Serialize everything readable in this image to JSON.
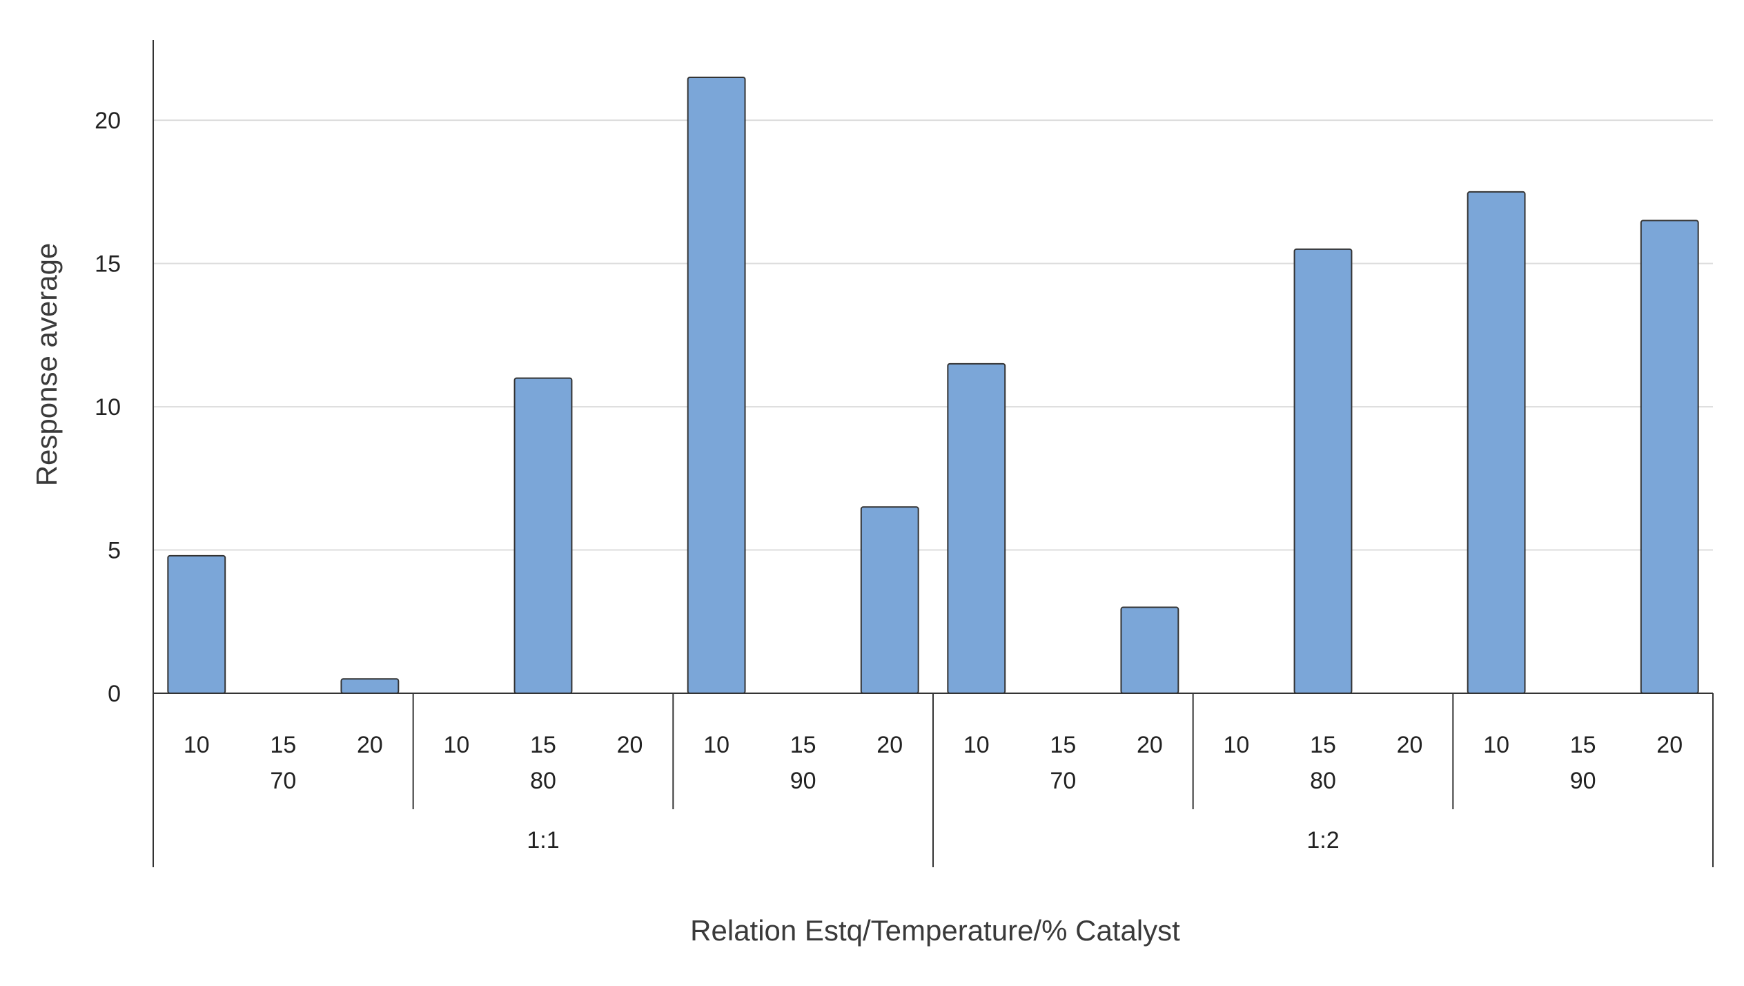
{
  "chart_data": {
    "type": "bar",
    "title": "",
    "xlabel": "Relation Estq/Temperature/% Catalyst",
    "ylabel": "Response average",
    "ylim": [
      0,
      22.8
    ],
    "yticks": [
      0,
      5,
      10,
      15,
      20
    ],
    "grid": true,
    "legend": "none",
    "x_levels": {
      "catalyst": [
        "10",
        "15",
        "20"
      ],
      "temperature": [
        "70",
        "80",
        "90"
      ],
      "relation": [
        "1:1",
        "1:2"
      ]
    },
    "categories": [
      "1:1/70/10",
      "1:1/70/15",
      "1:1/70/20",
      "1:1/80/10",
      "1:1/80/15",
      "1:1/80/20",
      "1:1/90/10",
      "1:1/90/15",
      "1:1/90/20",
      "1:2/70/10",
      "1:2/70/15",
      "1:2/70/20",
      "1:2/80/10",
      "1:2/80/15",
      "1:2/80/20",
      "1:2/90/10",
      "1:2/90/15",
      "1:2/90/20"
    ],
    "values": [
      4.8,
      0,
      0.5,
      0,
      11.0,
      0,
      21.5,
      0,
      6.5,
      11.5,
      0,
      3.0,
      0,
      15.5,
      0,
      17.5,
      0,
      16.5
    ],
    "colors": {
      "bar_fill": "#7ba6d8",
      "bar_stroke": "#333333",
      "gridline": "#dcdcdc",
      "axis": "#333333"
    }
  }
}
